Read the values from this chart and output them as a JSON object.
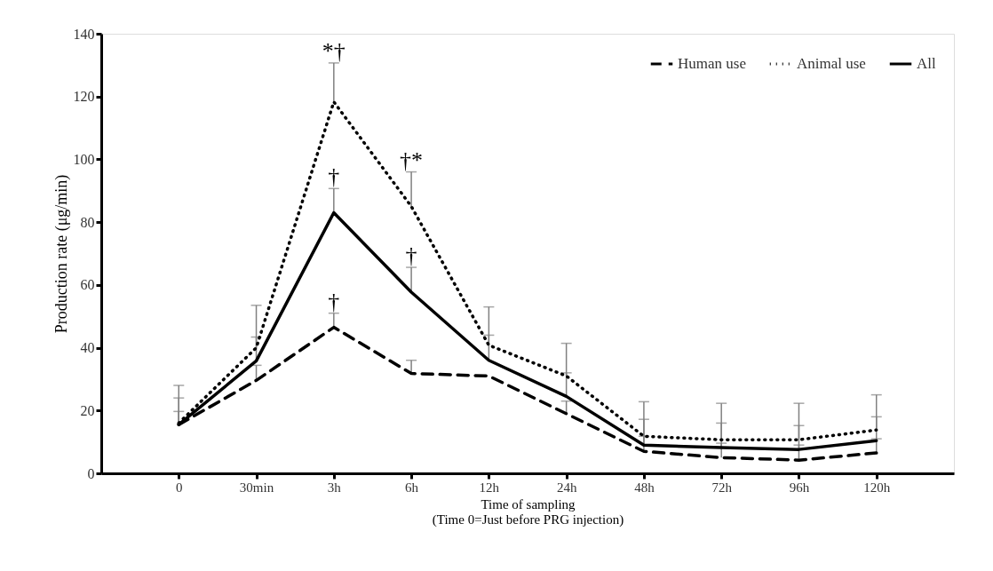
{
  "chart_data": {
    "type": "line",
    "xlabel": "Time  of sampling\n(Time  0=Just before PRG injection)",
    "ylabel": "Production rate (μg/min)",
    "categories": [
      "0",
      "30min",
      "3h",
      "6h",
      "12h",
      "24h",
      "48h",
      "72h",
      "96h",
      "120h"
    ],
    "series": [
      {
        "name": "Human use",
        "color": "#000000",
        "line_style": "dashed",
        "values": [
          15.5,
          29.6,
          46.5,
          31.8,
          31,
          19,
          7,
          5,
          4.2,
          6.5
        ],
        "errors": [
          [
            15.5,
            19.7
          ],
          [
            29.6,
            34.4
          ],
          [
            46.5,
            51
          ],
          [
            31.8,
            36
          ],
          null,
          [
            19,
            23
          ],
          [
            7,
            11.8
          ],
          [
            5,
            9.6
          ],
          [
            4.2,
            9
          ],
          [
            6.5,
            11
          ]
        ]
      },
      {
        "name": "Animal use",
        "color": "#000000",
        "line_style": "dotted",
        "values": [
          16,
          40,
          118.3,
          85,
          40.8,
          31,
          11.8,
          10.7,
          10.7,
          13.8
        ],
        "errors": [
          [
            16,
            28
          ],
          [
            40,
            53.5
          ],
          [
            118.3,
            130.7
          ],
          [
            85,
            96
          ],
          [
            40.8,
            53
          ],
          [
            31,
            41.4
          ],
          [
            11.8,
            22.8
          ],
          [
            10.7,
            22.3
          ],
          [
            10.7,
            22.3
          ],
          [
            13.8,
            25
          ]
        ]
      },
      {
        "name": "All",
        "color": "#000000",
        "line_style": "solid",
        "values": [
          15.5,
          35.8,
          83,
          57.7,
          36,
          24.5,
          9,
          8.2,
          7.6,
          10.4
        ],
        "errors": [
          [
            15.5,
            24
          ],
          [
            35.8,
            43.4
          ],
          [
            83,
            90.7
          ],
          [
            57.7,
            65.6
          ],
          [
            36,
            44
          ],
          [
            24.5,
            32
          ],
          [
            9,
            17.2
          ],
          [
            8.2,
            16
          ],
          [
            7.6,
            15.2
          ],
          [
            10.4,
            18
          ]
        ]
      }
    ],
    "ylim": [
      0,
      140
    ],
    "yticks": [
      0,
      20,
      40,
      60,
      80,
      100,
      120,
      140
    ],
    "annotations": [
      {
        "text": "*†",
        "x": "3h",
        "y": 118.3
      },
      {
        "text": "†*",
        "x": "6h",
        "y": 85
      },
      {
        "text": "†",
        "x": "3h",
        "y": 83
      },
      {
        "text": "†",
        "x": "6h",
        "y": 57.7
      },
      {
        "text": "†",
        "x": "3h",
        "y": 46.5
      }
    ],
    "legend": "top right",
    "grid": false
  }
}
